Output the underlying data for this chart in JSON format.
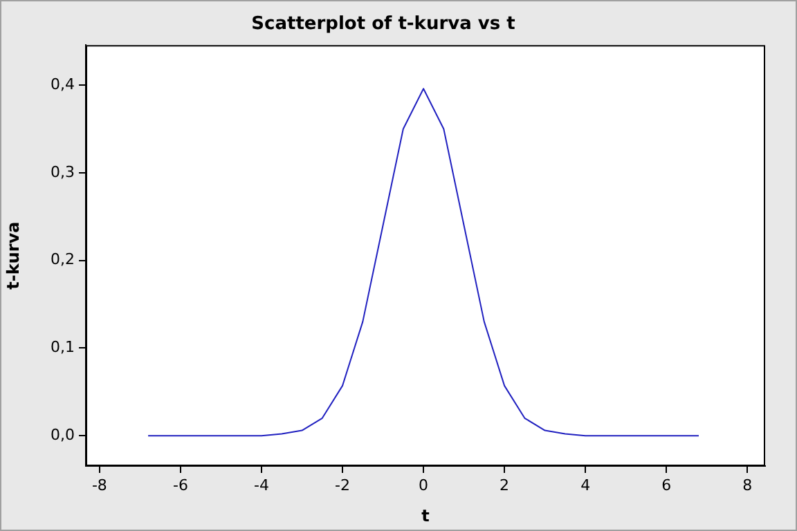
{
  "chart_data": {
    "type": "line",
    "title": "Scatterplot of t-kurva vs t",
    "xlabel": "t",
    "ylabel": "t-kurva",
    "x": [
      -6.8,
      -6,
      -5,
      -4.5,
      -4,
      -3.5,
      -3,
      -2.5,
      -2,
      -1.5,
      -1,
      -0.5,
      0,
      0.5,
      1,
      1.5,
      2,
      2.5,
      3,
      3.5,
      4,
      4.5,
      5,
      6,
      6.8
    ],
    "series": [
      {
        "color": "#2020c0",
        "values": [
          0,
          0,
          0,
          0,
          0,
          0.002,
          0.006,
          0.02,
          0.057,
          0.13,
          0.24,
          0.35,
          0.396,
          0.35,
          0.24,
          0.13,
          0.057,
          0.02,
          0.006,
          0.002,
          0,
          0,
          0,
          0,
          0
        ]
      }
    ],
    "xlim": [
      -8.34,
      8.44
    ],
    "xticks": [
      -8,
      -6,
      -4,
      -2,
      0,
      2,
      4,
      6,
      8
    ],
    "ylim": [
      -0.0346,
      0.4457
    ],
    "yticks": [
      {
        "value": 0,
        "label": "0,0"
      },
      {
        "value": 0.1,
        "label": "0,1"
      },
      {
        "value": 0.2,
        "label": "0,2"
      },
      {
        "value": 0.3,
        "label": "0,3"
      },
      {
        "value": 0.4,
        "label": "0,4"
      }
    ],
    "marker": "none",
    "line_style": "solid",
    "grid": false,
    "legend": false
  }
}
